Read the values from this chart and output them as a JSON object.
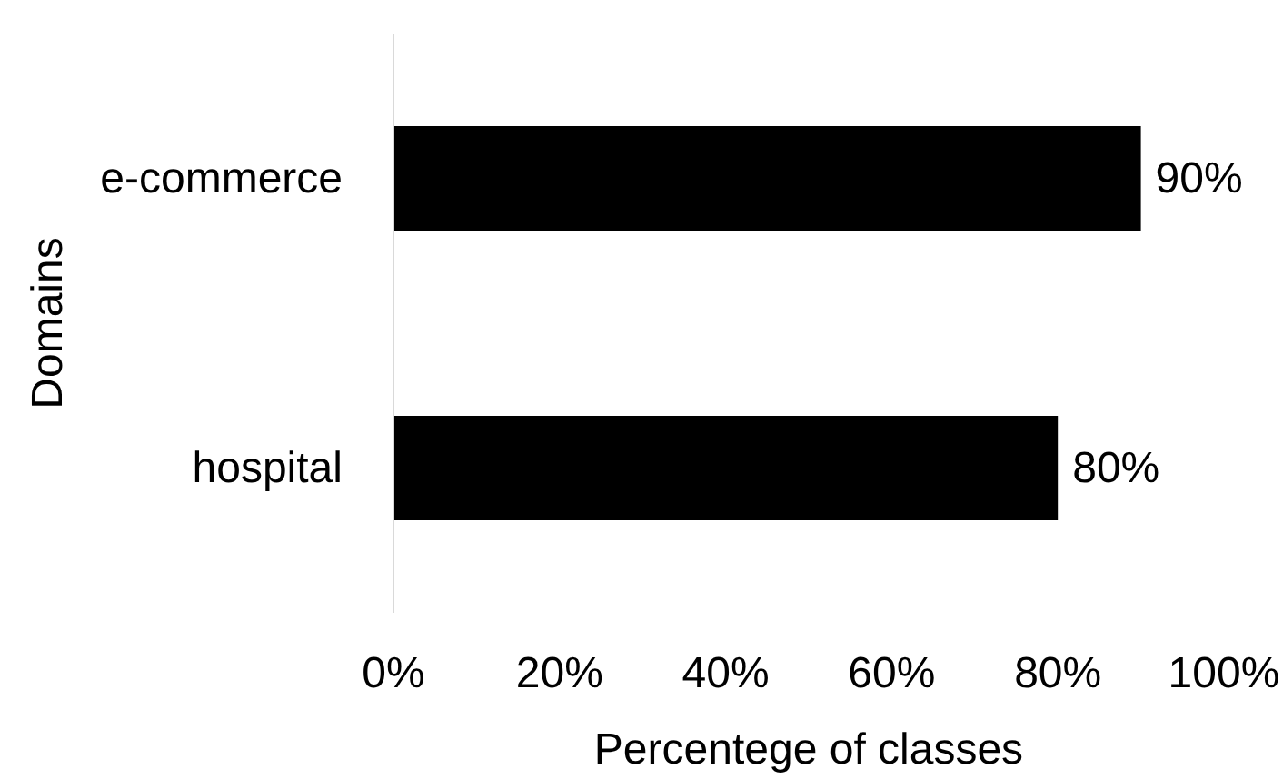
{
  "chart_data": {
    "type": "bar",
    "orientation": "horizontal",
    "categories": [
      "e-commerce",
      "hospital"
    ],
    "values": [
      90,
      80
    ],
    "color": "#000000",
    "value_labels": [
      "90%",
      "80%"
    ],
    "xlabel": "Percentege of classes",
    "ylabel": "Domains",
    "xlim": [
      0,
      100
    ],
    "xticks": [
      {
        "value": 0,
        "label": "0%"
      },
      {
        "value": 20,
        "label": "20%"
      },
      {
        "value": 40,
        "label": "40%"
      },
      {
        "value": 60,
        "label": "60%"
      },
      {
        "value": 80,
        "label": "80%"
      },
      {
        "value": 100,
        "label": "100%"
      }
    ]
  }
}
